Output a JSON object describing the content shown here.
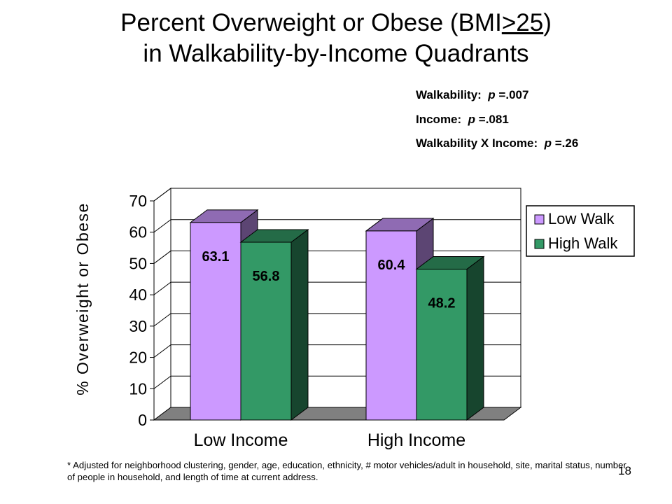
{
  "slide": {
    "title_line1_prefix": "Percent Overweight or Obese (BMI",
    "title_line1_underlined": ">25",
    "title_line1_suffix": ")",
    "title_line2": "in Walkability-by-Income Quadrants",
    "stats": [
      {
        "label": "Walkability:",
        "p_symbol": "p",
        "value": "=.007"
      },
      {
        "label": "Income:",
        "p_symbol": "p",
        "value": "=.081"
      },
      {
        "label": "Walkability X Income:",
        "p_symbol": "p",
        "value": "=.26"
      }
    ],
    "footnote": "* Adjusted for neighborhood clustering, gender, age, education, ethnicity, # motor vehicles/adult in household, site, marital status, number of people in household, and length of time at current address.",
    "page_number": "18"
  },
  "chart_data": {
    "type": "bar",
    "categories": [
      "Low Income",
      "High Income"
    ],
    "series": [
      {
        "name": "Low Walk",
        "values": [
          63.1,
          60.4
        ],
        "color": "#cc99ff"
      },
      {
        "name": "High Walk",
        "values": [
          56.8,
          48.2
        ],
        "color": "#339966"
      }
    ],
    "data_labels": [
      "63.1",
      "56.8",
      "60.4",
      "48.2"
    ],
    "ylabel": "% Overweight or Obese",
    "ylim": [
      0,
      70
    ],
    "yticks": [
      0,
      10,
      20,
      30,
      40,
      50,
      60,
      70
    ],
    "grid": true,
    "legend": "right",
    "style": "3d"
  }
}
